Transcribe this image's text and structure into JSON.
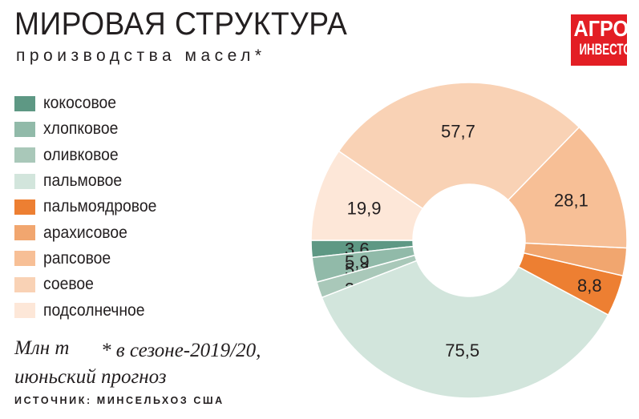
{
  "header": {
    "title": "МИРОВАЯ СТРУКТУРА",
    "subtitle": "производства масел*"
  },
  "logo": {
    "line1": "АГРО",
    "line2": "ИНВЕСТОР",
    "color": "#e31e24"
  },
  "footer": {
    "unit": "Млн т",
    "note_line1": "* в сезоне-2019/20,",
    "note_line2": "июньский прогноз",
    "source": "ИСТОЧНИК: МИНСЕЛЬХОЗ США"
  },
  "chart_data": {
    "type": "pie",
    "donut": true,
    "legend_position": "left",
    "categories": [
      "кокосовое",
      "хлопковое",
      "оливковое",
      "пальмовое",
      "пальмоядровое",
      "арахисовое",
      "рапсовое",
      "соевое",
      "подсолнечное"
    ],
    "values": [
      3.6,
      5.3,
      3.4,
      75.5,
      8.8,
      5.9,
      28.1,
      57.7,
      19.9
    ],
    "labels": [
      "3,6",
      "5,3",
      "3,4",
      "75,5",
      "8,8",
      "5,9",
      "28,1",
      "57,7",
      "19,9"
    ],
    "colors": [
      "#5e9884",
      "#91baa9",
      "#a9c8b9",
      "#d2e5dc",
      "#ed7f32",
      "#f1a66f",
      "#f7bf96",
      "#f9d2b5",
      "#fde7d8"
    ]
  }
}
